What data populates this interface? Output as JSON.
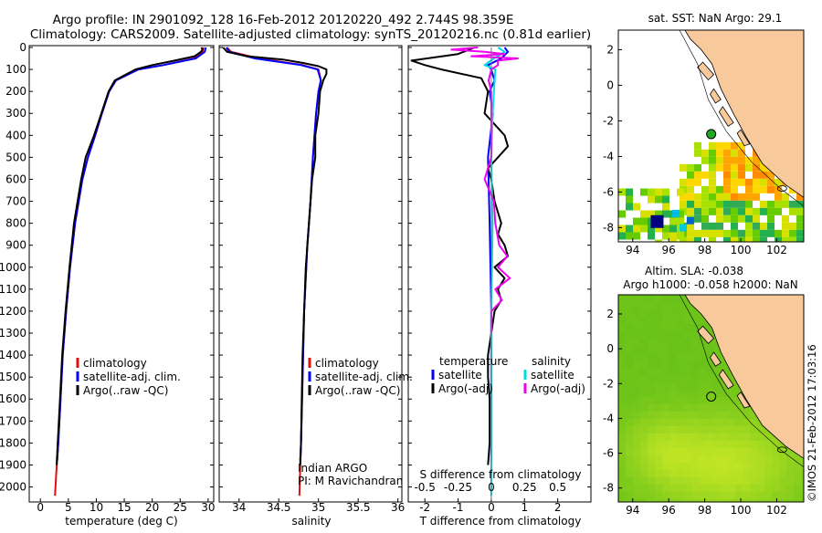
{
  "header": {
    "line1": "Argo profile: IN 2901092_128 16-Feb-2012 20120220_492 2.744S 98.359E",
    "line2": "Climatology: CARS2009. Satellite-adjusted climatology: synTS_20120216.nc (0.81d earlier)"
  },
  "colors": {
    "climatology": "#dd1111",
    "satellite": "#0000ff",
    "argo": "#000000",
    "salinity_satellite": "#00dddd",
    "salinity_argo": "#ee00ee",
    "land": "#f8c99b",
    "sea_sla": "#44c010"
  },
  "chart_data": [
    {
      "type": "line",
      "id": "temperature",
      "xlabel": "temperature (deg C)",
      "ylabel": "",
      "xlim": [
        -2,
        31
      ],
      "ylim": [
        2060,
        0
      ],
      "xticks": [
        "0",
        "5",
        "10",
        "15",
        "20",
        "25",
        "30"
      ],
      "xtick_values": [
        0,
        5,
        10,
        15,
        20,
        25,
        30
      ],
      "yticks": [
        "0",
        "100",
        "200",
        "300",
        "400",
        "500",
        "600",
        "700",
        "800",
        "900",
        "1000",
        "1100",
        "1200",
        "1300",
        "1400",
        "1500",
        "1600",
        "1700",
        "1800",
        "1900",
        "2000"
      ],
      "ytick_values": [
        0,
        100,
        200,
        300,
        400,
        500,
        600,
        700,
        800,
        900,
        1000,
        1100,
        1200,
        1300,
        1400,
        1500,
        1600,
        1700,
        1800,
        1900,
        2000
      ],
      "legend": [
        "climatology",
        "satellite-adj. clim.",
        "Argo(..raw -QC)"
      ],
      "series": [
        {
          "name": "climatology",
          "color": "#dd1111",
          "depth": [
            0,
            20,
            50,
            80,
            100,
            150,
            200,
            300,
            400,
            500,
            600,
            800,
            1000,
            1200,
            1400,
            1600,
            1800,
            1950,
            2040
          ],
          "values": [
            29.2,
            29.0,
            27.5,
            22.0,
            17.5,
            13.5,
            12.3,
            11.0,
            9.8,
            8.5,
            7.5,
            6.2,
            5.3,
            4.6,
            4.0,
            3.6,
            3.2,
            2.8,
            2.6
          ]
        },
        {
          "name": "satellite-adj. clim.",
          "color": "#0000ff",
          "depth": [
            0,
            20,
            50,
            80,
            100,
            150,
            200,
            300,
            400,
            500,
            600,
            800,
            1000,
            1200,
            1400,
            1600,
            1800,
            1880
          ],
          "values": [
            29.6,
            29.4,
            27.8,
            22.0,
            17.5,
            13.5,
            12.3,
            11.0,
            9.8,
            8.5,
            7.5,
            6.2,
            5.3,
            4.6,
            4.0,
            3.6,
            3.2,
            3.0
          ]
        },
        {
          "name": "Argo(..raw -QC)",
          "color": "#000000",
          "depth": [
            0,
            10,
            20,
            40,
            60,
            80,
            100,
            150,
            200,
            300,
            400,
            500,
            600,
            800,
            1000,
            1200,
            1400,
            1600,
            1800,
            1900
          ],
          "values": [
            28.8,
            29.0,
            28.7,
            27.6,
            24.0,
            20.0,
            17.0,
            13.3,
            12.2,
            10.9,
            9.6,
            8.1,
            7.3,
            6.0,
            5.2,
            4.5,
            3.9,
            3.5,
            3.1,
            2.9
          ]
        }
      ]
    },
    {
      "type": "line",
      "id": "salinity",
      "xlabel": "salinity",
      "xlim": [
        33.75,
        36.05
      ],
      "ylim": [
        2060,
        0
      ],
      "xticks": [
        "34",
        "34.5",
        "35",
        "35.5",
        "36"
      ],
      "xtick_values": [
        34,
        34.5,
        35,
        35.5,
        36
      ],
      "legend": [
        "climatology",
        "satellite-adj. clim.",
        "Argo(..raw -QC)"
      ],
      "annotation": [
        "Indian ARGO",
        "PI: M Ravichandran"
      ],
      "series": [
        {
          "name": "climatology",
          "color": "#dd1111",
          "depth": [
            0,
            20,
            50,
            80,
            100,
            150,
            200,
            300,
            500,
            700,
            900,
            1200,
            1500,
            1800,
            2040
          ],
          "values": [
            33.85,
            33.9,
            34.25,
            34.8,
            35.0,
            35.03,
            35.0,
            34.97,
            34.93,
            34.9,
            34.86,
            34.82,
            34.8,
            34.78,
            34.76
          ]
        },
        {
          "name": "satellite-adj. clim.",
          "color": "#0000ff",
          "depth": [
            0,
            20,
            50,
            80,
            100,
            150,
            200,
            300,
            500,
            700,
            900,
            1200,
            1500,
            1800,
            1880
          ],
          "values": [
            33.84,
            33.88,
            34.2,
            34.78,
            34.99,
            35.03,
            35.0,
            34.97,
            34.93,
            34.9,
            34.86,
            34.82,
            34.8,
            34.78,
            34.77
          ]
        },
        {
          "name": "Argo(..raw -QC)",
          "color": "#000000",
          "depth": [
            0,
            20,
            40,
            55,
            70,
            85,
            100,
            120,
            150,
            200,
            300,
            400,
            500,
            600,
            700,
            800,
            1000,
            1200,
            1400,
            1600,
            1800,
            1900
          ],
          "values": [
            33.8,
            33.85,
            34.1,
            34.55,
            34.8,
            35.0,
            35.1,
            35.1,
            35.06,
            35.02,
            35.0,
            34.96,
            34.96,
            34.92,
            34.9,
            34.88,
            34.84,
            34.82,
            34.8,
            34.79,
            34.78,
            34.77
          ]
        }
      ]
    },
    {
      "type": "line",
      "id": "difference",
      "xlabel": "T difference from climatology",
      "xlabel_top": "S difference from climatology",
      "xlim": [
        -2.5,
        3.0
      ],
      "ylim": [
        2060,
        0
      ],
      "xticks": [
        "-2",
        "-1",
        "0",
        "1",
        "2"
      ],
      "xtick_values": [
        -2,
        -1,
        0,
        1,
        2
      ],
      "s_xticks": [
        "-0.5",
        "-0.25",
        "0",
        "0.25",
        "0.5"
      ],
      "s_xtick_values": [
        -0.5,
        -0.25,
        0,
        0.25,
        0.5
      ],
      "s_scale": 4,
      "legend_left": {
        "title": "temperature",
        "items": [
          "satellite",
          "Argo(-adj)"
        ]
      },
      "legend_right": {
        "title": "salinity",
        "items": [
          "satellite",
          "Argo(-adj)"
        ]
      },
      "series": [
        {
          "name": "temperature satellite",
          "color": "#0000ff",
          "depth": [
            0,
            20,
            50,
            80,
            100,
            150,
            200,
            300,
            500,
            800,
            1200,
            1600,
            1880
          ],
          "values": [
            0.4,
            0.5,
            0.3,
            -0.1,
            0.0,
            0.1,
            -0.05,
            0.05,
            -0.1,
            -0.05,
            0.0,
            0.0,
            0.0
          ]
        },
        {
          "name": "temperature Argo(-adj)",
          "color": "#000000",
          "depth": [
            0,
            30,
            60,
            80,
            100,
            140,
            200,
            300,
            400,
            450,
            500,
            550,
            600,
            700,
            800,
            850,
            900,
            950,
            1000,
            1050,
            1100,
            1150,
            1200,
            1300,
            1400,
            1500,
            1600,
            1700,
            1800,
            1900
          ],
          "values": [
            -0.5,
            -1.0,
            -2.4,
            -2.0,
            -1.5,
            -0.3,
            -0.1,
            -0.2,
            0.4,
            0.5,
            0.2,
            -0.1,
            0.0,
            0.1,
            0.3,
            0.2,
            0.4,
            0.5,
            0.1,
            0.4,
            0.2,
            0.3,
            0.1,
            0.0,
            -0.1,
            -0.1,
            -0.05,
            -0.05,
            -0.05,
            -0.1
          ]
        },
        {
          "name": "salinity satellite",
          "color": "#00dddd",
          "depth": [
            0,
            20,
            50,
            80,
            100,
            200,
            300,
            500,
            800,
            1200,
            1600,
            1950,
            2040
          ],
          "values": [
            0.05,
            0.1,
            0.02,
            -0.05,
            0.03,
            0.02,
            0.01,
            0.0,
            0.01,
            0.0,
            0.0,
            0.0,
            0.0
          ]
        },
        {
          "name": "salinity Argo(-adj)",
          "color": "#ee00ee",
          "depth": [
            0,
            10,
            20,
            30,
            40,
            50,
            60,
            80,
            100,
            150,
            200,
            300,
            500,
            600,
            700,
            800,
            900,
            950,
            1000,
            1050,
            1100,
            1150,
            1200,
            1300
          ],
          "values": [
            -0.1,
            -0.3,
            -0.05,
            0.1,
            -0.15,
            0.2,
            0.05,
            0.05,
            0.0,
            -0.02,
            0.0,
            0.0,
            0.0,
            -0.05,
            0.02,
            0.03,
            0.06,
            0.12,
            0.05,
            0.14,
            0.03,
            0.08,
            0.0,
            0.0
          ]
        }
      ]
    },
    {
      "type": "heatmap",
      "id": "sst_map",
      "title": "sat. SST: NaN Argo: 29.1",
      "xticks": [
        "94",
        "96",
        "98",
        "100",
        "102"
      ],
      "xtick_values": [
        94,
        96,
        98,
        100,
        102
      ],
      "yticks": [
        "2",
        "0",
        "-2",
        "-4",
        "-6",
        "-8"
      ],
      "ytick_values": [
        2,
        0,
        -2,
        -4,
        -6,
        -8
      ],
      "xlim": [
        93.2,
        103.5
      ],
      "ylim": [
        -8.8,
        3.1
      ],
      "argo_position": [
        98.359,
        -2.744
      ]
    },
    {
      "type": "heatmap",
      "id": "sla_map",
      "title_line1": "Altim. SLA: -0.038",
      "title_line2": "Argo h1000: -0.058 h2000: NaN",
      "xticks": [
        "94",
        "96",
        "98",
        "100",
        "102"
      ],
      "xtick_values": [
        94,
        96,
        98,
        100,
        102
      ],
      "yticks": [
        "2",
        "0",
        "-2",
        "-4",
        "-6",
        "-8"
      ],
      "ytick_values": [
        2,
        0,
        -2,
        -4,
        -6,
        -8
      ],
      "xlim": [
        93.2,
        103.5
      ],
      "ylim": [
        -8.8,
        3.1
      ],
      "argo_position": [
        98.359,
        -2.744
      ]
    }
  ],
  "footer": {
    "credit": "©IMOS 21-Feb-2012 17:03:16"
  }
}
